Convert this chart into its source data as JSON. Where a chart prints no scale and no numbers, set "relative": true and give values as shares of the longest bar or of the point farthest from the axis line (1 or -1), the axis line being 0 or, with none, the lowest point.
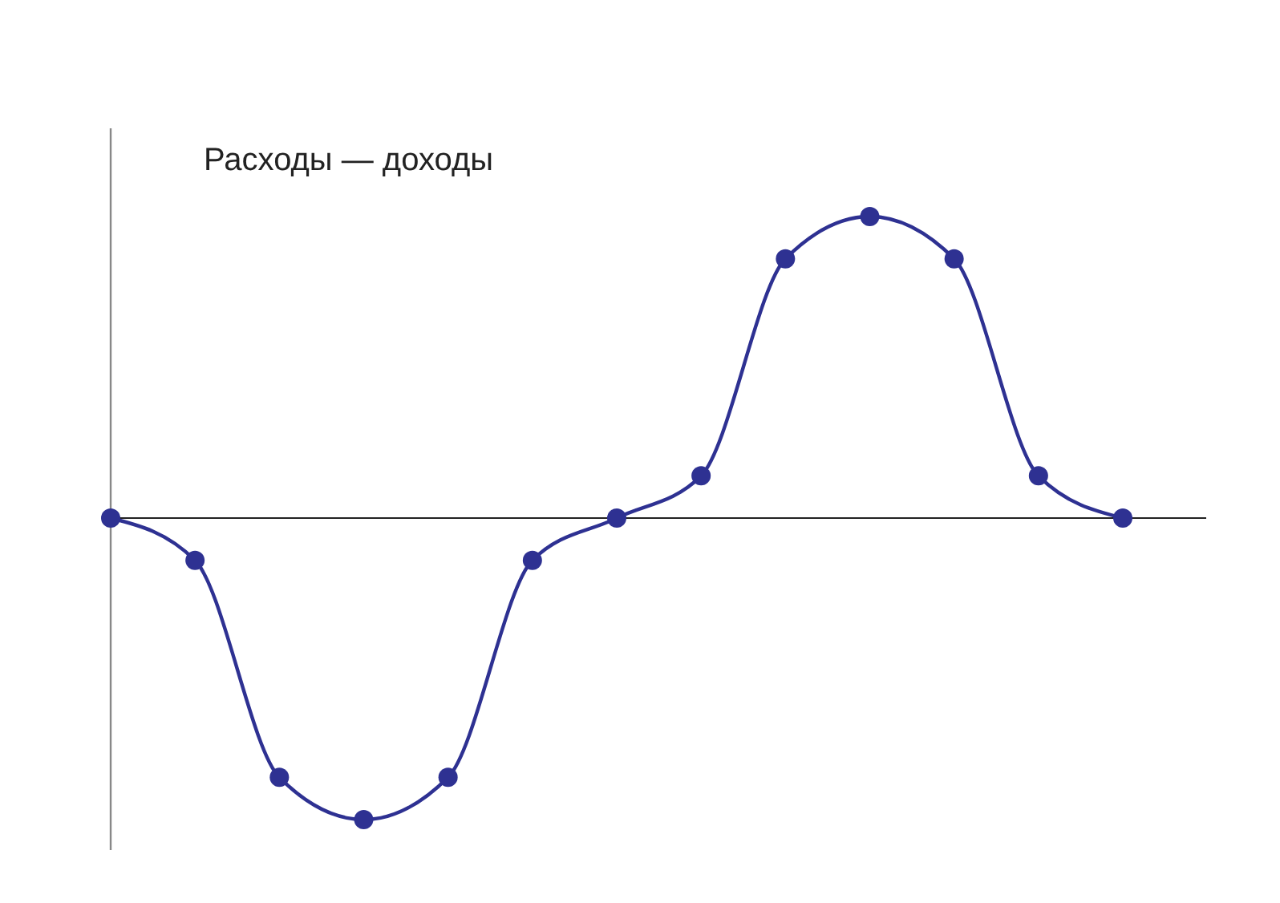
{
  "chart_data": {
    "type": "line",
    "title": "Расходы — доходы",
    "relative": true,
    "categories": [
      null,
      null,
      null,
      null,
      null,
      null,
      null,
      null,
      null,
      null,
      null,
      null,
      null
    ],
    "series": [
      {
        "color": "#2e3192",
        "values": [
          0,
          -0.14,
          -0.86,
          -1,
          -0.86,
          -0.14,
          0,
          0.14,
          0.86,
          1,
          0.86,
          0.14,
          0
        ]
      }
    ],
    "marker": "circle"
  }
}
